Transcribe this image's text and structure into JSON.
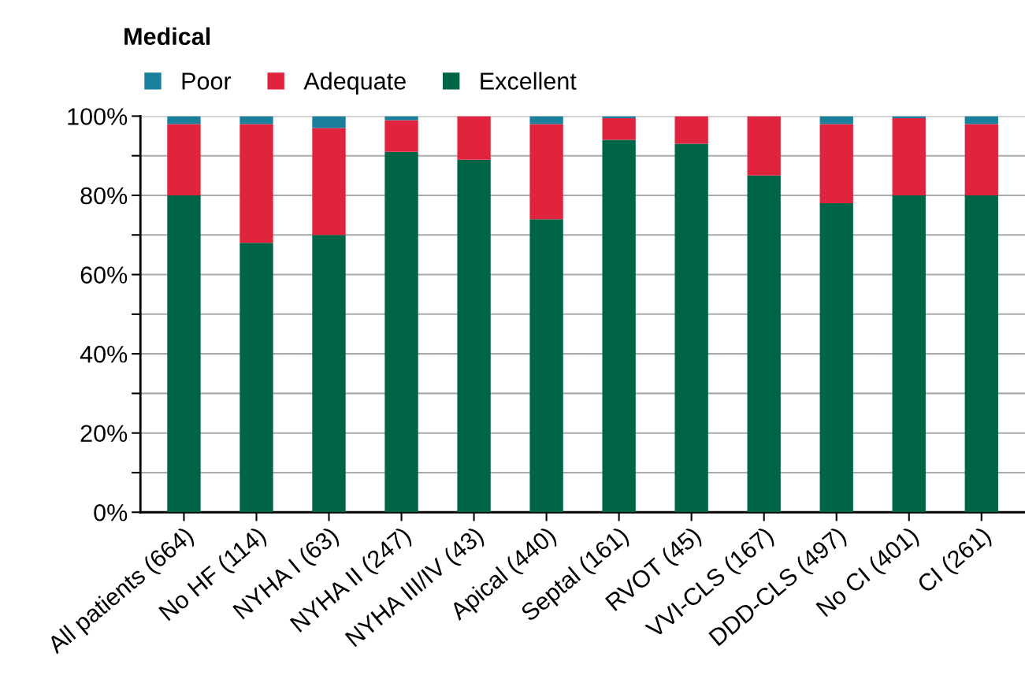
{
  "chart_data": {
    "type": "bar",
    "title": "Medical",
    "stacked": true,
    "categories": [
      "All patients (664)",
      "No HF (114)",
      "NYHA I (63)",
      "NYHA II (247)",
      "NYHA III/IV (43)",
      "Apical (440)",
      "Septal (161)",
      "RVOT (45)",
      "VVI-CLS (167)",
      "DDD-CLS (497)",
      "No CI (401)",
      "CI (261)"
    ],
    "series": [
      {
        "name": "Excellent",
        "color": "#006446",
        "values": [
          80,
          68,
          70,
          91,
          89,
          74,
          94,
          93,
          85,
          78,
          80,
          80
        ]
      },
      {
        "name": "Adequate",
        "color": "#e0243e",
        "values": [
          18,
          30,
          27,
          8,
          11,
          24,
          5.5,
          7,
          15,
          20,
          19.5,
          18
        ]
      },
      {
        "name": "Poor",
        "color": "#1a7f9a",
        "values": [
          2,
          2,
          3,
          1,
          0,
          2,
          0.5,
          0,
          0,
          2,
          0.5,
          2
        ]
      }
    ],
    "ylim": [
      0,
      100
    ],
    "yticks": [
      {
        "value": 0,
        "label": "0%"
      },
      {
        "value": 10,
        "label": null
      },
      {
        "value": 20,
        "label": "20%"
      },
      {
        "value": 30,
        "label": null
      },
      {
        "value": 40,
        "label": "40%"
      },
      {
        "value": 50,
        "label": null
      },
      {
        "value": 60,
        "label": "60%"
      },
      {
        "value": 70,
        "label": null
      },
      {
        "value": 80,
        "label": "80%"
      },
      {
        "value": 90,
        "label": null
      },
      {
        "value": 100,
        "label": "100%"
      }
    ],
    "grid": "y",
    "legend": "top left"
  }
}
